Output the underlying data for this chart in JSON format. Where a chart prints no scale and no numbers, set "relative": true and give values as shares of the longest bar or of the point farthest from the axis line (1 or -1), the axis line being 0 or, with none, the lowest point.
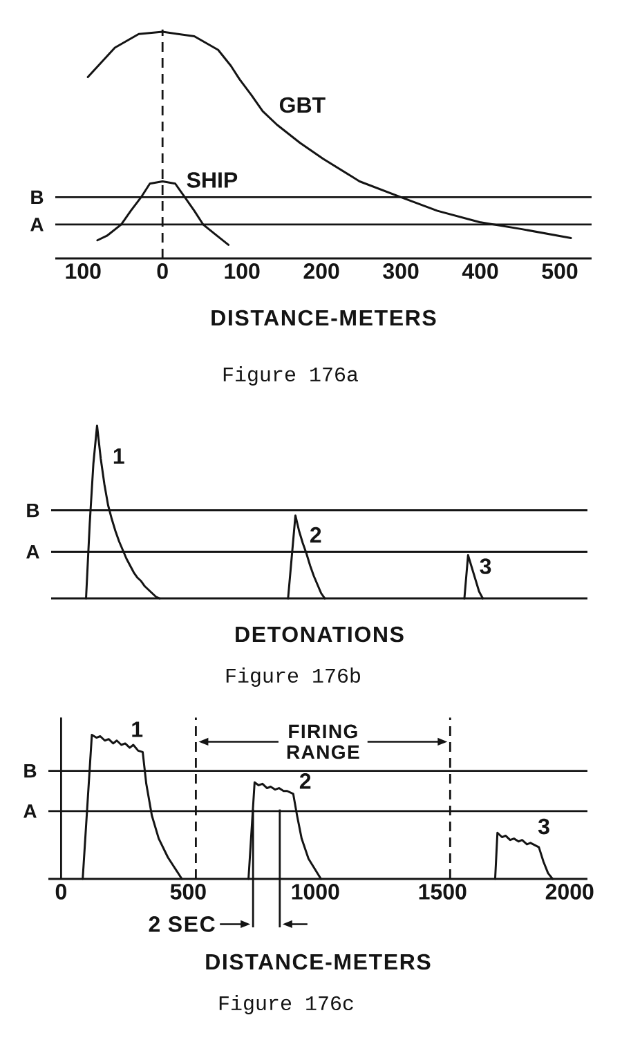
{
  "chart_data": [
    {
      "type": "line",
      "xlabel": "DISTANCE-METERS",
      "annotations": [
        "Figure 176a"
      ],
      "relative": true,
      "xlim": [
        -135,
        540
      ],
      "xticks": [
        {
          "value": -100,
          "label": "100"
        },
        0,
        100,
        200,
        300,
        400,
        500
      ],
      "series": [
        {
          "name": "GBT",
          "color": "#141414",
          "x": [
            -94,
            -60,
            -30,
            0,
            40,
            70,
            86,
            97,
            112,
            126,
            144,
            173,
            202,
            248,
            300,
            346,
            399,
            451,
            514
          ],
          "values": [
            0.8,
            0.93,
            0.99,
            1,
            0.98,
            0.92,
            0.85,
            0.79,
            0.72,
            0.65,
            0.59,
            0.51,
            0.44,
            0.34,
            0.27,
            0.21,
            0.16,
            0.13,
            0.09
          ]
        },
        {
          "name": "SHIP",
          "color": "#141414",
          "x": [
            -82,
            -70,
            -52,
            -40,
            -27,
            -16,
            0,
            16,
            28,
            40,
            51,
            65,
            83
          ],
          "values": [
            0.08,
            0.1,
            0.15,
            0.21,
            0.27,
            0.33,
            0.34,
            0.33,
            0.27,
            0.21,
            0.15,
            0.11,
            0.06
          ]
        }
      ],
      "ref_lines": [
        {
          "axis": "y",
          "value": 0.27,
          "label": "B"
        },
        {
          "axis": "y",
          "value": 0.15,
          "label": "A"
        },
        {
          "axis": "x",
          "value": 0,
          "line_style": "dashed"
        }
      ]
    },
    {
      "type": "line",
      "xlabel": "DETONATIONS",
      "annotations": [
        "Figure 176b"
      ],
      "relative": true,
      "categories": [
        null,
        null,
        null,
        null,
        null,
        null,
        null,
        null,
        null,
        null,
        null,
        null,
        null,
        null,
        null,
        null,
        null,
        null,
        null,
        null,
        null,
        null,
        null,
        null,
        null,
        null,
        null,
        null,
        null,
        null,
        null,
        null,
        null,
        null,
        null,
        null,
        null,
        null,
        null,
        null,
        null,
        null,
        null,
        null,
        null,
        null,
        null,
        null,
        null,
        null,
        null,
        null,
        null,
        null,
        null,
        null,
        null,
        null,
        null,
        null,
        null,
        null,
        null,
        null,
        null,
        null,
        null,
        null,
        null,
        null,
        null,
        null,
        null,
        null,
        null,
        null,
        null,
        null,
        null,
        null,
        null,
        null,
        null,
        null,
        null,
        null,
        null,
        null,
        null,
        null,
        null,
        null,
        null,
        null,
        null,
        null,
        null,
        null,
        null,
        null,
        null,
        null,
        null,
        null,
        null,
        null,
        null,
        null,
        null,
        null,
        null,
        null,
        null,
        null,
        null,
        null,
        null,
        null,
        null,
        null,
        null,
        null,
        null,
        null,
        null,
        null,
        null,
        null,
        null,
        null,
        null,
        null,
        null,
        null,
        null,
        null,
        null,
        null,
        null,
        null,
        null,
        null,
        null,
        null,
        null,
        null
      ],
      "series": [
        {
          "name": "1",
          "color": "#141414",
          "values": [
            null,
            null,
            null,
            null,
            null,
            null,
            null,
            null,
            null,
            0,
            0.43,
            0.78,
            1,
            0.81,
            0.66,
            0.54,
            0.46,
            0.39,
            0.33,
            0.28,
            0.23,
            0.19,
            0.15,
            0.12,
            0.1,
            0.07,
            0.05,
            0.03,
            0.01,
            0,
            null,
            null,
            null,
            null,
            null,
            null,
            null,
            null,
            null,
            null,
            null,
            null,
            null,
            null,
            null,
            null,
            null,
            null,
            null,
            null,
            null,
            null,
            null,
            null,
            null,
            null,
            null,
            null,
            null,
            null,
            null,
            null,
            null,
            null,
            null,
            null,
            null,
            null,
            null,
            null,
            null,
            null,
            null,
            null,
            null,
            null,
            null,
            null,
            null,
            null,
            null,
            null,
            null,
            null,
            null,
            null,
            null,
            null,
            null,
            null,
            null,
            null,
            null,
            null,
            null,
            null,
            null,
            null,
            null,
            null,
            null,
            null,
            null,
            null,
            null,
            null,
            null,
            null,
            null,
            null,
            null,
            null,
            null,
            null,
            null,
            null,
            null,
            null,
            null,
            null,
            null,
            null,
            null,
            null,
            null,
            null,
            null,
            null,
            null,
            null,
            null,
            null,
            null,
            null,
            null,
            null,
            null,
            null,
            null,
            null,
            null,
            null,
            null,
            null,
            null,
            null
          ]
        },
        {
          "name": "2",
          "color": "#141414",
          "values": [
            null,
            null,
            null,
            null,
            null,
            null,
            null,
            null,
            null,
            null,
            null,
            null,
            null,
            null,
            null,
            null,
            null,
            null,
            null,
            null,
            null,
            null,
            null,
            null,
            null,
            null,
            null,
            null,
            null,
            null,
            null,
            null,
            null,
            null,
            null,
            null,
            null,
            null,
            null,
            null,
            null,
            null,
            null,
            null,
            null,
            null,
            null,
            null,
            null,
            null,
            null,
            null,
            null,
            null,
            null,
            null,
            null,
            null,
            null,
            null,
            null,
            null,
            null,
            null,
            0,
            0.24,
            0.48,
            0.39,
            0.32,
            0.26,
            0.19,
            0.13,
            0.08,
            0.03,
            0,
            null,
            null,
            null,
            null,
            null,
            null,
            null,
            null,
            null,
            null,
            null,
            null,
            null,
            null,
            null,
            null,
            null,
            null,
            null,
            null,
            null,
            null,
            null,
            null,
            null,
            null,
            null,
            null,
            null,
            null,
            null,
            null,
            null,
            null,
            null,
            null,
            null,
            null,
            null,
            null,
            null,
            null,
            null,
            null,
            null,
            null,
            null,
            null,
            null,
            null,
            null,
            null,
            null,
            null,
            null,
            null,
            null,
            null,
            null,
            null,
            null,
            null,
            null,
            null,
            null,
            null,
            null,
            null,
            null,
            null,
            null
          ]
        },
        {
          "name": "3",
          "color": "#141414",
          "values": [
            null,
            null,
            null,
            null,
            null,
            null,
            null,
            null,
            null,
            null,
            null,
            null,
            null,
            null,
            null,
            null,
            null,
            null,
            null,
            null,
            null,
            null,
            null,
            null,
            null,
            null,
            null,
            null,
            null,
            null,
            null,
            null,
            null,
            null,
            null,
            null,
            null,
            null,
            null,
            null,
            null,
            null,
            null,
            null,
            null,
            null,
            null,
            null,
            null,
            null,
            null,
            null,
            null,
            null,
            null,
            null,
            null,
            null,
            null,
            null,
            null,
            null,
            null,
            null,
            null,
            null,
            null,
            null,
            null,
            null,
            null,
            null,
            null,
            null,
            null,
            null,
            null,
            null,
            null,
            null,
            null,
            null,
            null,
            null,
            null,
            null,
            null,
            null,
            null,
            null,
            null,
            null,
            null,
            null,
            null,
            null,
            null,
            null,
            null,
            null,
            null,
            null,
            null,
            null,
            null,
            null,
            null,
            null,
            null,
            null,
            null,
            null,
            0,
            0.25,
            0.18,
            0.11,
            0.04,
            0,
            null,
            null,
            null,
            null,
            null,
            null,
            null,
            null,
            null,
            null,
            null,
            null,
            null,
            null,
            null,
            null,
            null,
            null,
            null,
            null,
            null,
            null,
            null,
            null,
            null,
            null,
            null,
            null
          ]
        }
      ],
      "ref_lines": [
        {
          "axis": "y",
          "value": 0.51,
          "label": "B"
        },
        {
          "axis": "y",
          "value": 0.27,
          "label": "A"
        }
      ]
    },
    {
      "type": "line",
      "xlabel": "DISTANCE-METERS",
      "annotations": [
        "FIRING RANGE",
        "2 SEC",
        "Figure 176c"
      ],
      "relative": true,
      "xlim": [
        -50,
        2070
      ],
      "xticks": [
        0,
        500,
        1000,
        1500,
        2000
      ],
      "series": [
        {
          "name": "1",
          "color": "#141414",
          "x": [
            85,
            121,
            139,
            154,
            172,
            187,
            205,
            219,
            237,
            252,
            270,
            284,
            303,
            321,
            335,
            357,
            384,
            420,
            475
          ],
          "values": [
            0,
            1,
            0.98,
            0.99,
            0.96,
            0.97,
            0.94,
            0.96,
            0.93,
            0.94,
            0.91,
            0.93,
            0.89,
            0.88,
            0.66,
            0.44,
            0.28,
            0.15,
            0
          ]
        },
        {
          "name": "2",
          "color": "#141414",
          "x": [
            737,
            761,
            777,
            792,
            810,
            824,
            842,
            857,
            875,
            889,
            913,
            928,
            946,
            973,
            1022
          ],
          "values": [
            0,
            0.67,
            0.65,
            0.66,
            0.63,
            0.64,
            0.62,
            0.63,
            0.61,
            0.61,
            0.59,
            0.44,
            0.28,
            0.14,
            0
          ]
        },
        {
          "name": "3",
          "color": "#141414",
          "x": [
            1707,
            1716,
            1734,
            1748,
            1766,
            1781,
            1799,
            1813,
            1832,
            1846,
            1879,
            1897,
            1915,
            1933
          ],
          "values": [
            0,
            0.32,
            0.29,
            0.3,
            0.27,
            0.28,
            0.26,
            0.27,
            0.24,
            0.25,
            0.22,
            0.12,
            0.04,
            0
          ]
        }
      ],
      "ref_lines": [
        {
          "axis": "y",
          "value": 0.75,
          "label": "B"
        },
        {
          "axis": "y",
          "value": 0.47,
          "label": "A"
        },
        {
          "axis": "x",
          "value": 0
        },
        {
          "axis": "x",
          "value": 530,
          "line_style": "dashed"
        },
        {
          "axis": "x",
          "value": 1530,
          "line_style": "dashed"
        },
        {
          "axis": "x",
          "value": 755
        },
        {
          "axis": "x",
          "value": 860
        }
      ]
    }
  ]
}
